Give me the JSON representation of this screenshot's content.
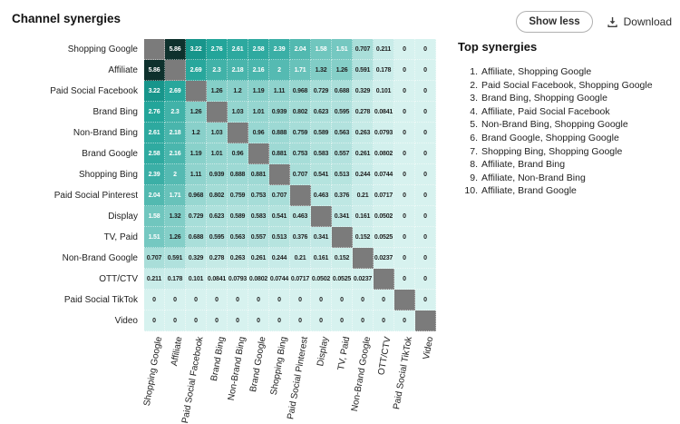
{
  "header": {
    "title": "Channel synergies",
    "show_less_button": "Show less",
    "download_button": "Download"
  },
  "top_synergies": {
    "title": "Top synergies",
    "items": [
      "Affiliate, Shopping Google",
      "Paid Social Facebook, Shopping Google",
      "Brand Bing, Shopping Google",
      "Affiliate, Paid Social Facebook",
      "Non-Brand Bing, Shopping Google",
      "Brand Google, Shopping Google",
      "Shopping Bing, Shopping Google",
      "Affiliate, Brand Bing",
      "Affiliate, Non-Brand Bing",
      "Affiliate, Brand Google"
    ]
  },
  "chart_data": {
    "type": "heatmap",
    "title": "Channel synergies",
    "categories": [
      "Shopping Google",
      "Affiliate",
      "Paid Social Facebook",
      "Brand Bing",
      "Non-Brand Bing",
      "Brand Google",
      "Shopping Bing",
      "Paid Social Pinterest",
      "Display",
      "TV, Paid",
      "Non-Brand Google",
      "OTT/CTV",
      "Paid Social TikTok",
      "Video"
    ],
    "matrix": [
      [
        null,
        5.86,
        3.22,
        2.76,
        2.61,
        2.58,
        2.39,
        2.04,
        1.58,
        1.51,
        0.707,
        0.211,
        0,
        0
      ],
      [
        5.86,
        null,
        2.69,
        2.3,
        2.18,
        2.16,
        2,
        1.71,
        1.32,
        1.26,
        0.591,
        0.178,
        0,
        0
      ],
      [
        3.22,
        2.69,
        null,
        1.26,
        1.2,
        1.19,
        1.11,
        0.968,
        0.729,
        0.688,
        0.329,
        0.101,
        0,
        0
      ],
      [
        2.76,
        2.3,
        1.26,
        null,
        1.03,
        1.01,
        0.939,
        0.802,
        0.623,
        0.595,
        0.278,
        0.0841,
        0,
        0
      ],
      [
        2.61,
        2.18,
        1.2,
        1.03,
        null,
        0.96,
        0.888,
        0.759,
        0.589,
        0.563,
        0.263,
        0.0793,
        0,
        0
      ],
      [
        2.58,
        2.16,
        1.19,
        1.01,
        0.96,
        null,
        0.881,
        0.753,
        0.583,
        0.557,
        0.261,
        0.0802,
        0,
        0
      ],
      [
        2.39,
        2,
        1.11,
        0.939,
        0.888,
        0.881,
        null,
        0.707,
        0.541,
        0.513,
        0.244,
        0.0744,
        0,
        0
      ],
      [
        2.04,
        1.71,
        0.968,
        0.802,
        0.759,
        0.753,
        0.707,
        null,
        0.463,
        0.376,
        0.21,
        0.0717,
        0,
        0
      ],
      [
        1.58,
        1.32,
        0.729,
        0.623,
        0.589,
        0.583,
        0.541,
        0.463,
        null,
        0.341,
        0.161,
        0.0502,
        0,
        0
      ],
      [
        1.51,
        1.26,
        0.688,
        0.595,
        0.563,
        0.557,
        0.513,
        0.376,
        0.341,
        null,
        0.152,
        0.0525,
        0,
        0
      ],
      [
        0.707,
        0.591,
        0.329,
        0.278,
        0.263,
        0.261,
        0.244,
        0.21,
        0.161,
        0.152,
        null,
        0.0237,
        0,
        0
      ],
      [
        0.211,
        0.178,
        0.101,
        0.0841,
        0.0793,
        0.0802,
        0.0744,
        0.0717,
        0.0502,
        0.0525,
        0.0237,
        null,
        0,
        0
      ],
      [
        0,
        0,
        0,
        0,
        0,
        0,
        0,
        0,
        0,
        0,
        0,
        0,
        null,
        0
      ],
      [
        0,
        0,
        0,
        0,
        0,
        0,
        0,
        0,
        0,
        0,
        0,
        0,
        0,
        null
      ]
    ],
    "color_scale": {
      "domain": [
        0,
        5.86
      ],
      "min_color": "#d7f2ef",
      "mid_color": "#18a095",
      "max_color": "#0e312d",
      "diagonal_color": "#7b7b7b",
      "white_text_min": 1.45,
      "dark_text_color": "#1f1f1f",
      "white_text_color": "#ffffff"
    },
    "legend": "none",
    "grid": "dotted"
  }
}
